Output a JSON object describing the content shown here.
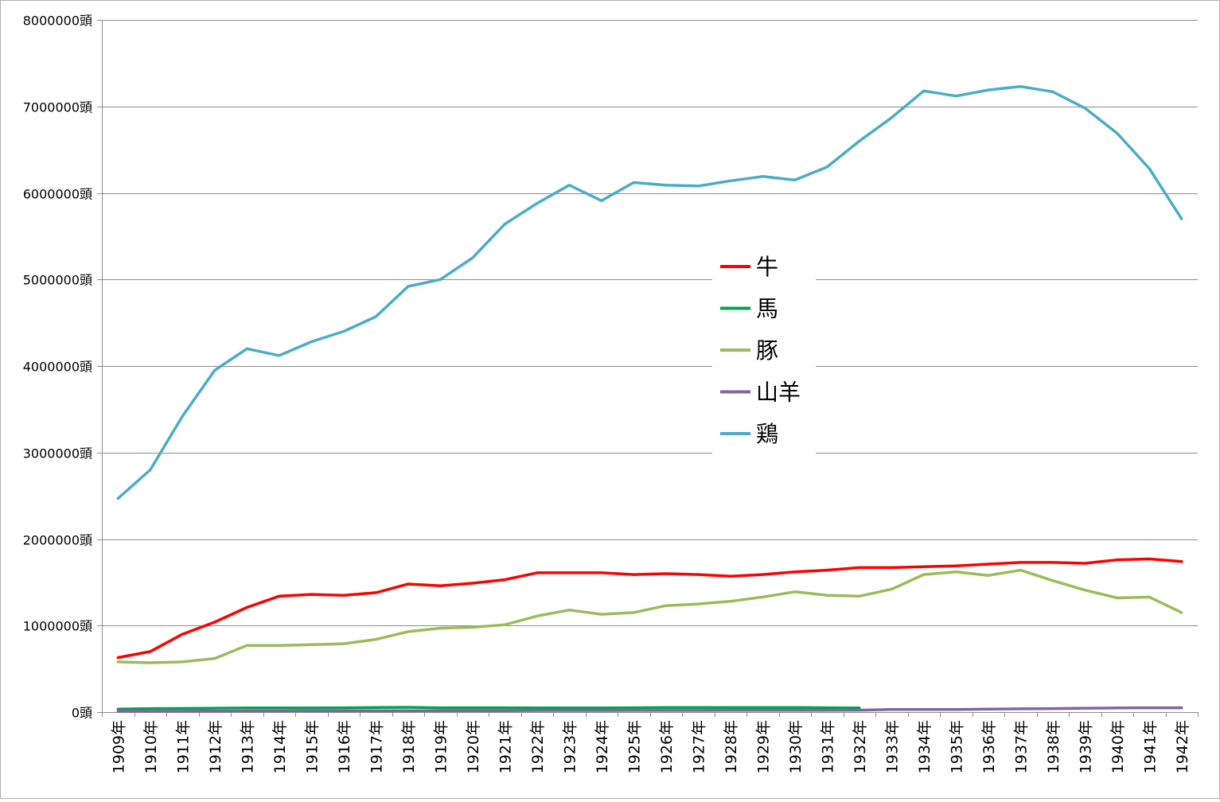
{
  "chart_data": {
    "type": "line",
    "title": "",
    "xlabel": "",
    "ylabel": "",
    "ylim": [
      0,
      8000000
    ],
    "y_ticks": [
      0,
      1000000,
      2000000,
      3000000,
      4000000,
      5000000,
      6000000,
      7000000,
      8000000
    ],
    "y_tick_labels": [
      "0頭",
      "1000000頭",
      "2000000頭",
      "3000000頭",
      "4000000頭",
      "5000000頭",
      "6000000頭",
      "7000000頭",
      "8000000頭"
    ],
    "grid": true,
    "legend_position": "center",
    "categories": [
      "1909年",
      "1910年",
      "1911年",
      "1912年",
      "1913年",
      "1914年",
      "1915年",
      "1916年",
      "1917年",
      "1918年",
      "1919年",
      "1920年",
      "1921年",
      "1922年",
      "1923年",
      "1924年",
      "1925年",
      "1926年",
      "1927年",
      "1928年",
      "1929年",
      "1930年",
      "1931年",
      "1932年",
      "1933年",
      "1934年",
      "1935年",
      "1936年",
      "1937年",
      "1938年",
      "1939年",
      "1940年",
      "1941年",
      "1942年"
    ],
    "series": [
      {
        "name": "牛",
        "color": "#ff0000",
        "values": [
          630000,
          700000,
          900000,
          1040000,
          1210000,
          1340000,
          1360000,
          1350000,
          1380000,
          1480000,
          1460000,
          1490000,
          1530000,
          1610000,
          1610000,
          1610000,
          1590000,
          1600000,
          1590000,
          1570000,
          1590000,
          1620000,
          1640000,
          1670000,
          1670000,
          1680000,
          1690000,
          1710000,
          1730000,
          1730000,
          1720000,
          1760000,
          1770000,
          1740000
        ]
      },
      {
        "name": "馬",
        "color": "#00a550",
        "values": [
          35000,
          40000,
          42000,
          45000,
          48000,
          48000,
          48000,
          50000,
          53000,
          55000,
          50000,
          50000,
          50000,
          48000,
          48000,
          48000,
          50000,
          52000,
          52000,
          53000,
          53000,
          53000,
          50000,
          48000,
          null,
          null,
          null,
          null,
          null,
          null,
          null,
          null,
          null,
          null
        ]
      },
      {
        "name": "豚",
        "color": "#9bbb59",
        "values": [
          580000,
          570000,
          580000,
          620000,
          770000,
          770000,
          780000,
          790000,
          840000,
          930000,
          970000,
          980000,
          1010000,
          1110000,
          1180000,
          1130000,
          1150000,
          1230000,
          1250000,
          1280000,
          1330000,
          1390000,
          1350000,
          1340000,
          1420000,
          1590000,
          1620000,
          1580000,
          1640000,
          1520000,
          1410000,
          1320000,
          1330000,
          1150000
        ]
      },
      {
        "name": "山羊",
        "color": "#8064a2",
        "values": [
          10000,
          10000,
          10000,
          12000,
          14000,
          14000,
          15000,
          15000,
          16000,
          16000,
          16000,
          17000,
          17000,
          18000,
          18000,
          18000,
          19000,
          19000,
          19000,
          20000,
          20000,
          21000,
          21000,
          22000,
          30000,
          30000,
          30000,
          35000,
          38000,
          40000,
          45000,
          48000,
          50000,
          50000
        ]
      },
      {
        "name": "鶏",
        "color": "#4bacc6",
        "values": [
          2470000,
          2800000,
          3420000,
          3950000,
          4200000,
          4120000,
          4280000,
          4400000,
          4570000,
          4920000,
          5000000,
          5250000,
          5640000,
          5880000,
          6090000,
          5910000,
          6120000,
          6090000,
          6080000,
          6140000,
          6190000,
          6150000,
          6300000,
          6600000,
          6870000,
          7180000,
          7120000,
          7190000,
          7230000,
          7170000,
          6980000,
          6690000,
          6280000,
          5700000
        ]
      }
    ]
  }
}
